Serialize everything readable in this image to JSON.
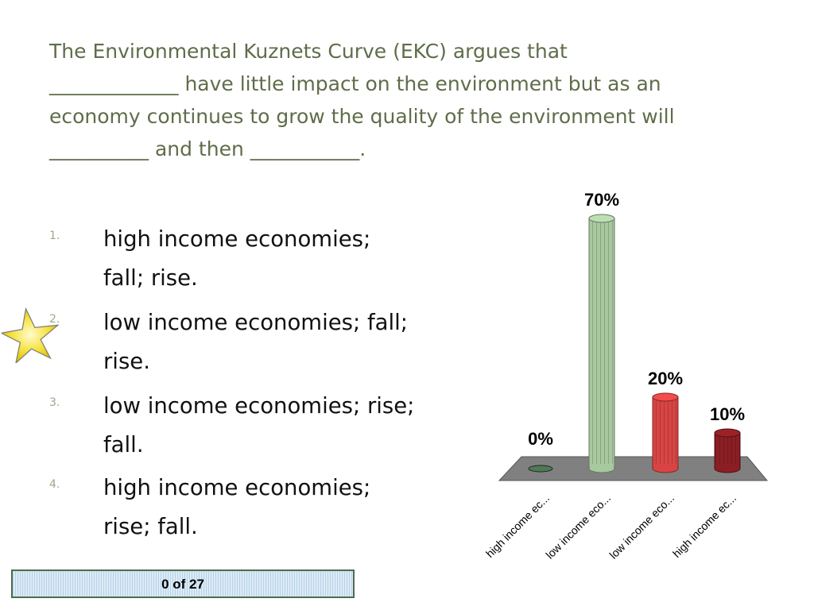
{
  "question": {
    "lines": [
      "The Environmental Kuznets Curve (EKC) argues that",
      "_____________ have little impact on the environment but as an",
      "economy continues to grow the quality of the environment will",
      "__________ and then ___________."
    ]
  },
  "options": [
    {
      "number": "1.",
      "lines": [
        "high income economies;",
        "fall; rise."
      ]
    },
    {
      "number": "2.",
      "lines": [
        "low income economies; fall;",
        "rise."
      ]
    },
    {
      "number": "3.",
      "lines": [
        "low income economies; rise;",
        "fall."
      ]
    },
    {
      "number": "4.",
      "lines": [
        "high income economies;",
        "rise; fall."
      ]
    }
  ],
  "correct_marker": {
    "icon": "star-icon",
    "option_index": 1
  },
  "chart_data": {
    "type": "bar",
    "categories": [
      "high income ec...",
      "low income eco...",
      "low income eco...",
      "high income ec..."
    ],
    "values": [
      0,
      70,
      20,
      10
    ],
    "value_labels": [
      "0%",
      "70%",
      "20%",
      "10%"
    ],
    "colors": [
      "#4f7a4f",
      "#a8c8a0",
      "#d84444",
      "#8b1e24"
    ],
    "ylim": [
      0,
      70
    ],
    "title": "",
    "xlabel": "",
    "ylabel": ""
  },
  "progress": {
    "label": "0 of 27"
  }
}
